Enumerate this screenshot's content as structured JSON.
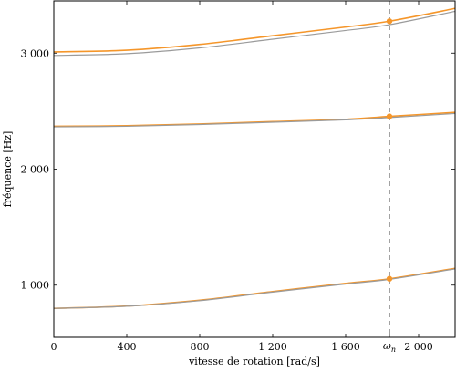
{
  "chart_data": {
    "type": "line",
    "xlabel": "vitesse de rotation [rad/s]",
    "ylabel": "fréquence [Hz]",
    "xlim": [
      0,
      2200
    ],
    "ylim": [
      550,
      3450
    ],
    "xticks": [
      0,
      400,
      800,
      1200,
      1600,
      2000
    ],
    "xtick_labels": [
      "0",
      "400",
      "800",
      "1 200",
      "1 600",
      "2 000"
    ],
    "yticks": [
      1000,
      2000,
      3000
    ],
    "ytick_labels": [
      "1 000",
      "2 000",
      "3 000"
    ],
    "marker_x": 1840,
    "marker_label": "ω",
    "marker_label_sub": "n",
    "grid": false,
    "colors": {
      "orange": "#f5962a",
      "gray": "#9b9b9b",
      "dashed": "#555555"
    },
    "series": [
      {
        "color": "orange",
        "x": [
          0,
          400,
          800,
          1200,
          1600,
          1840,
          2200
        ],
        "values": [
          800,
          820,
          870,
          945,
          1015,
          1055,
          1145
        ]
      },
      {
        "color": "gray",
        "x": [
          0,
          400,
          800,
          1200,
          1600,
          1840,
          2200
        ],
        "values": [
          800,
          818,
          866,
          940,
          1010,
          1050,
          1140
        ]
      },
      {
        "color": "orange",
        "x": [
          0,
          400,
          800,
          1200,
          1600,
          1840,
          2200
        ],
        "values": [
          2370,
          2375,
          2390,
          2410,
          2430,
          2455,
          2490
        ]
      },
      {
        "color": "gray",
        "x": [
          0,
          400,
          800,
          1200,
          1600,
          1840,
          2200
        ],
        "values": [
          2365,
          2370,
          2385,
          2405,
          2425,
          2445,
          2480
        ]
      },
      {
        "color": "orange",
        "x": [
          0,
          400,
          800,
          1200,
          1600,
          1840,
          2200
        ],
        "values": [
          3010,
          3025,
          3075,
          3150,
          3225,
          3275,
          3385
        ]
      },
      {
        "color": "gray",
        "x": [
          0,
          400,
          800,
          1200,
          1600,
          1840,
          2200
        ],
        "values": [
          2980,
          2995,
          3045,
          3120,
          3195,
          3245,
          3360
        ]
      }
    ],
    "markers": [
      {
        "x": 1840,
        "y": 1055
      },
      {
        "x": 1840,
        "y": 2455
      },
      {
        "x": 1840,
        "y": 3275
      }
    ]
  }
}
